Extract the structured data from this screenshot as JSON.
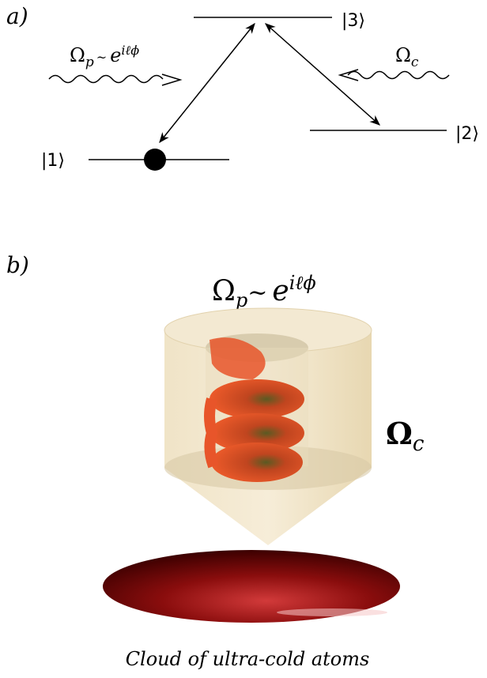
{
  "panel_a": {
    "label": "a)",
    "levels": [
      "|1⟩",
      "|2⟩",
      "|3⟩"
    ],
    "probe": {
      "symbol": "Ω",
      "sub": "p",
      "tilde": "~",
      "base": "e",
      "sup": "iℓϕ"
    },
    "coupling": {
      "symbol": "Ω",
      "sub": "c"
    }
  },
  "panel_b": {
    "label": "b)",
    "probe": {
      "symbol": "Ω",
      "sub": "p",
      "tilde": "~",
      "base": "e",
      "sup": "iℓϕ"
    },
    "coupling": {
      "symbol": "Ω",
      "sub": "c"
    },
    "caption": "Cloud of ultra-cold atoms"
  }
}
